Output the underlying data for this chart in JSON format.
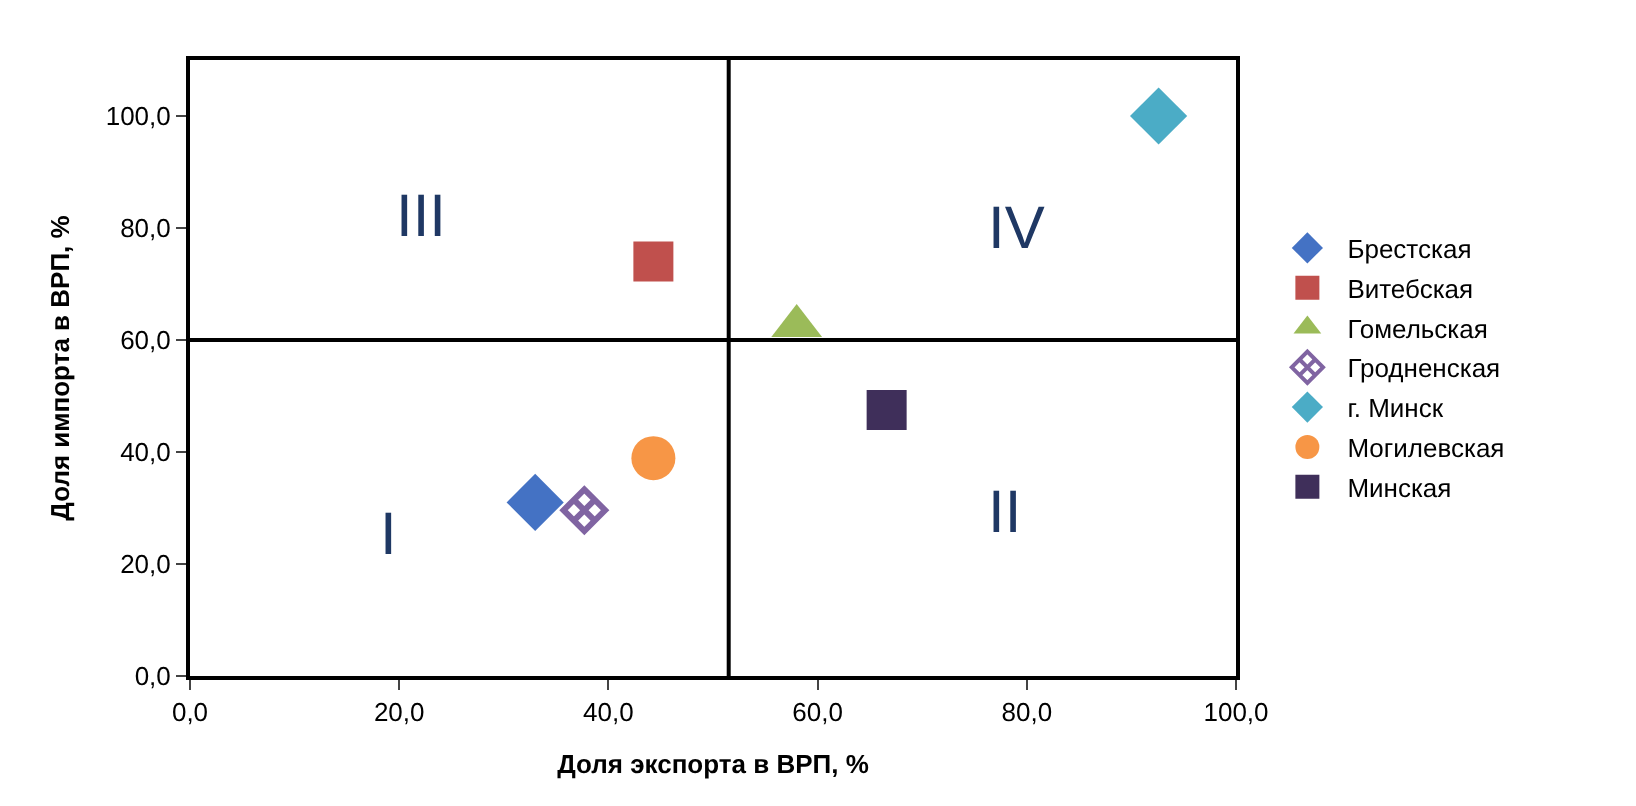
{
  "chart_data": {
    "type": "scatter",
    "xlabel": "Доля экспорта в ВРП, %",
    "ylabel": "Доля импорта в ВРП, %",
    "xlim": [
      0,
      100
    ],
    "ylim": [
      0,
      110
    ],
    "xticks": [
      {
        "value": 0,
        "label": "0,0"
      },
      {
        "value": 20,
        "label": "20,0"
      },
      {
        "value": 40,
        "label": "40,0"
      },
      {
        "value": 60,
        "label": "60,0"
      },
      {
        "value": 80,
        "label": "80,0"
      },
      {
        "value": 100,
        "label": "100,0"
      }
    ],
    "yticks": [
      {
        "value": 0,
        "label": "0,0"
      },
      {
        "value": 20,
        "label": "20,0"
      },
      {
        "value": 40,
        "label": "40,0"
      },
      {
        "value": 60,
        "label": "60,0"
      },
      {
        "value": 80,
        "label": "80,0"
      },
      {
        "value": 100,
        "label": "100,0"
      }
    ],
    "legend": "right",
    "ref_lines": [
      {
        "axis": "x",
        "value": 51.5,
        "color": "#000000"
      },
      {
        "axis": "y",
        "value": 60,
        "color": "#000000"
      }
    ],
    "annotations": [
      "III",
      "IV",
      "I",
      "II"
    ],
    "series": [
      {
        "name": "Брестская",
        "color": "#4472c4",
        "marker": "diamond",
        "x": [
          33
        ],
        "values": [
          31
        ]
      },
      {
        "name": "Витебская",
        "color": "#c0504d",
        "marker": "square",
        "x": [
          44.3
        ],
        "values": [
          74
        ]
      },
      {
        "name": "Гомельская",
        "color": "#9bbb59",
        "marker": "triangle",
        "x": [
          58
        ],
        "values": [
          62.5
        ]
      },
      {
        "name": "Гродненская",
        "color": "#8064a2",
        "marker": "cross",
        "x": [
          37.7
        ],
        "values": [
          29.6
        ]
      },
      {
        "name": "г. Минск",
        "color": "#4bacc6",
        "marker": "diamond",
        "x": [
          92.6
        ],
        "values": [
          100
        ]
      },
      {
        "name": "Могилевская",
        "color": "#f79646",
        "marker": "circle",
        "x": [
          44.3
        ],
        "values": [
          38.9
        ]
      },
      {
        "name": "Минская",
        "color": "#3f2f5a",
        "marker": "square",
        "x": [
          66.6
        ],
        "values": [
          47.5
        ]
      }
    ]
  }
}
